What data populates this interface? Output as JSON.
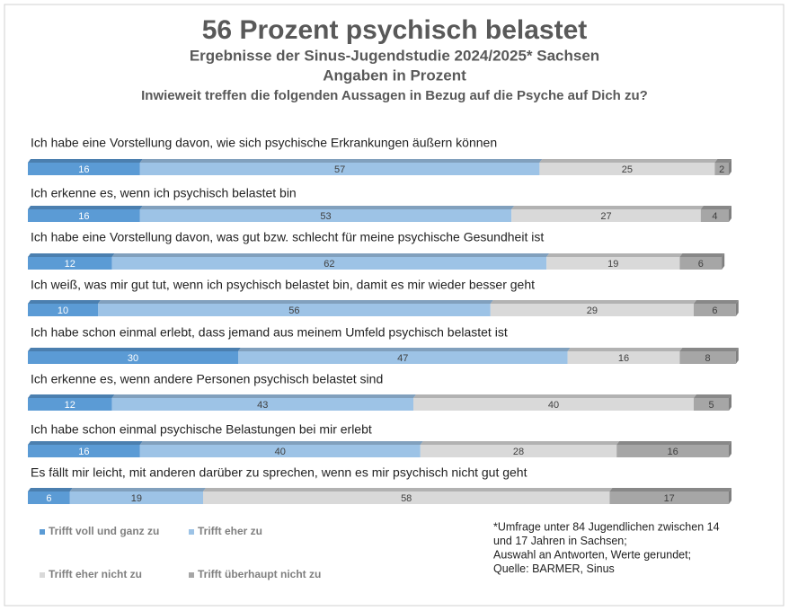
{
  "chart_data": {
    "type": "bar",
    "orientation": "horizontal",
    "stacked": true,
    "title": "56 Prozent psychisch belastet",
    "subtitle": "Ergebnisse der Sinus-Jugendstudie 2024/2025* Sachsen",
    "unit_note": "Angaben in Prozent",
    "question": "Inwieweit treffen die folgenden Aussagen in Bezug auf die Psyche auf Dich zu?",
    "categories": [
      "Ich habe eine Vorstellung davon, wie sich psychische Erkrankungen äußern können",
      "Ich erkenne es, wenn ich psychisch belastet bin",
      "Ich habe eine Vorstellung davon, was gut bzw. schlecht für meine psychische Gesundheit ist",
      "Ich weiß, was mir gut tut, wenn ich psychisch belastet bin, damit es mir wieder besser geht",
      "Ich habe schon einmal erlebt, dass jemand aus meinem Umfeld psychisch belastet ist",
      "Ich erkenne es, wenn andere Personen psychisch belastet sind",
      "Ich habe schon einmal psychische Belastungen bei mir erlebt",
      "Es fällt mir leicht, mit anderen darüber zu sprechen, wenn es mir psychisch nicht gut geht"
    ],
    "series": [
      {
        "name": "Trifft voll und ganz zu",
        "color": "#5b9bd5",
        "values": [
          16,
          16,
          12,
          10,
          30,
          12,
          16,
          6
        ]
      },
      {
        "name": "Trifft eher zu",
        "color": "#9dc3e6",
        "values": [
          57,
          53,
          62,
          56,
          47,
          43,
          40,
          19
        ]
      },
      {
        "name": "Trifft eher nicht zu",
        "color": "#d9d9d9",
        "values": [
          25,
          27,
          19,
          29,
          16,
          40,
          28,
          58
        ]
      },
      {
        "name": "Trifft überhaupt nicht zu",
        "color": "#a6a6a6",
        "values": [
          2,
          4,
          6,
          6,
          8,
          5,
          16,
          17
        ]
      }
    ],
    "xlim": [
      0,
      100
    ],
    "legend": "bottom-left",
    "footnote": [
      "*Umfrage unter 84 Jugendlichen zwischen 14",
      "und 17 Jahren in Sachsen;",
      "Auswahl an Antworten, Werte gerundet;",
      "Quelle: BARMER, Sinus"
    ]
  }
}
